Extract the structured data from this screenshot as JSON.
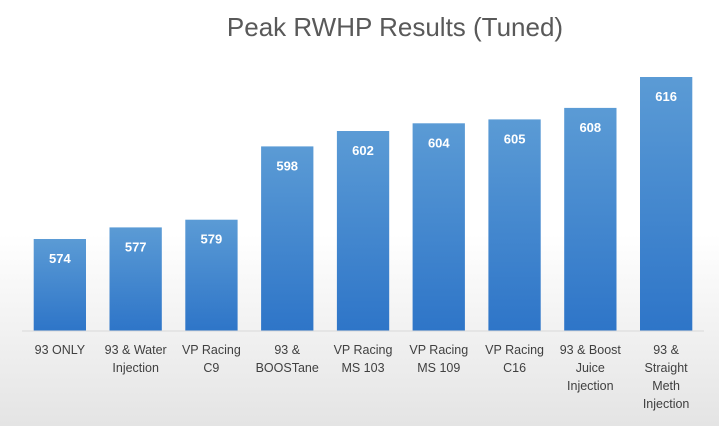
{
  "chart_data": {
    "type": "bar",
    "title": "Peak RWHP Results (Tuned)",
    "categories": [
      [
        "93 ONLY"
      ],
      [
        "93 & Water",
        "Injection"
      ],
      [
        "VP Racing",
        "C9"
      ],
      [
        "93 &",
        "BOOSTane"
      ],
      [
        "VP Racing",
        "MS 103"
      ],
      [
        "VP Racing",
        "MS 109"
      ],
      [
        "VP Racing",
        "C16"
      ],
      [
        "93 & Boost",
        "Juice",
        "Injection"
      ],
      [
        "93 &",
        "Straight",
        "Meth",
        "Injection"
      ]
    ],
    "values": [
      574,
      577,
      579,
      598,
      602,
      604,
      605,
      608,
      616
    ],
    "bar_color_top": "#5b9bd5",
    "bar_color_bottom": "#2e75c8",
    "background_gradient_top": "#ffffff",
    "background_gradient_bottom": "#e4e4e4",
    "grid": false,
    "legend": "none"
  }
}
